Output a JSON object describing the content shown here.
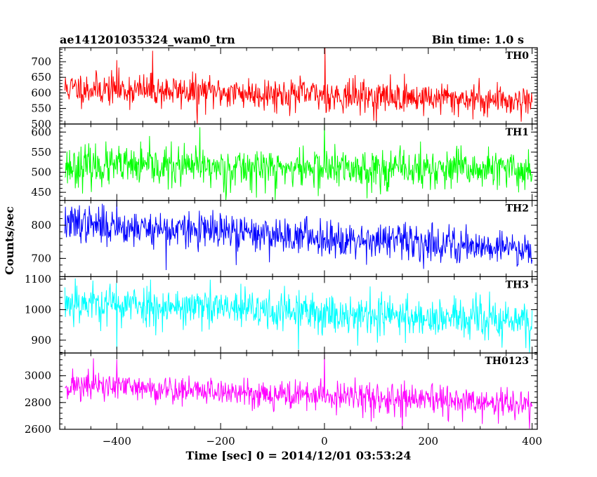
{
  "header": {
    "left_title": "ae141201035324_wam0_trn",
    "right_title": "Bin time: 1.0 s"
  },
  "chart_data": {
    "type": "line",
    "title": "ae141201035324_wam0_trn",
    "subtitle": "Bin time: 1.0 s",
    "xlabel": "Time [sec] 0 = 2014/12/01 03:53:24",
    "ylabel": "Counts/sec",
    "xlim": [
      -510,
      410
    ],
    "xticks": [
      -400,
      -200,
      0,
      200,
      400
    ],
    "xtick_labels": [
      "−400",
      "−200",
      "0",
      "200",
      "400"
    ],
    "grid": false,
    "legend": "none",
    "panels": [
      {
        "name": "TH0",
        "color": "#ff0000",
        "ylim": [
          500,
          745
        ],
        "yticks": [
          500,
          550,
          600,
          650,
          700
        ],
        "series": {
          "x_start": -500,
          "x_end": 400,
          "step": 1,
          "start_level": 615,
          "end_level": 575,
          "noise_sd": 26,
          "seed": 11,
          "spikes": [
            [
              -331,
              735
            ],
            [
              1,
              745
            ],
            [
              -400,
              705
            ],
            [
              -245,
              500
            ],
            [
              100,
              500
            ]
          ]
        }
      },
      {
        "name": "TH1",
        "color": "#00ff00",
        "ylim": [
          430,
          620
        ],
        "yticks": [
          450,
          500,
          550,
          600
        ],
        "series": {
          "x_start": -500,
          "x_end": 400,
          "step": 1,
          "start_level": 515,
          "end_level": 505,
          "noise_sd": 25,
          "seed": 23,
          "spikes": [
            [
              -240,
              612
            ],
            [
              0,
              620
            ],
            [
              -190,
              430
            ],
            [
              -95,
              430
            ]
          ]
        }
      },
      {
        "name": "TH2",
        "color": "#0000ff",
        "ylim": [
          645,
          875
        ],
        "yticks": [
          700,
          800
        ],
        "series": {
          "x_start": -500,
          "x_end": 400,
          "step": 1,
          "start_level": 805,
          "end_level": 730,
          "noise_sd": 27,
          "seed": 37,
          "spikes": [
            [
              -400,
              875
            ],
            [
              -472,
              860
            ],
            [
              -305,
              665
            ],
            [
              -170,
              680
            ]
          ]
        }
      },
      {
        "name": "TH3",
        "color": "#00ffff",
        "ylim": [
          858,
          1108
        ],
        "yticks": [
          900,
          1000,
          1100
        ],
        "series": {
          "x_start": -500,
          "x_end": 400,
          "step": 1,
          "start_level": 1025,
          "end_level": 960,
          "noise_sd": 34,
          "seed": 53,
          "spikes": [
            [
              -480,
              1102
            ],
            [
              -400,
              870
            ],
            [
              -50,
              870
            ],
            [
              395,
              860
            ]
          ]
        }
      },
      {
        "name": "TH0123",
        "color": "#ff00ff",
        "ylim": [
          2600,
          3170
        ],
        "yticks": [
          2600,
          2800,
          3000
        ],
        "series": {
          "x_start": -500,
          "x_end": 400,
          "step": 1,
          "start_level": 2930,
          "end_level": 2780,
          "noise_sd": 55,
          "seed": 71,
          "spikes": [
            [
              0,
              3168
            ],
            [
              -400,
              3120
            ],
            [
              -445,
              3130
            ],
            [
              150,
              2605
            ],
            [
              395,
              2605
            ]
          ]
        }
      }
    ]
  }
}
